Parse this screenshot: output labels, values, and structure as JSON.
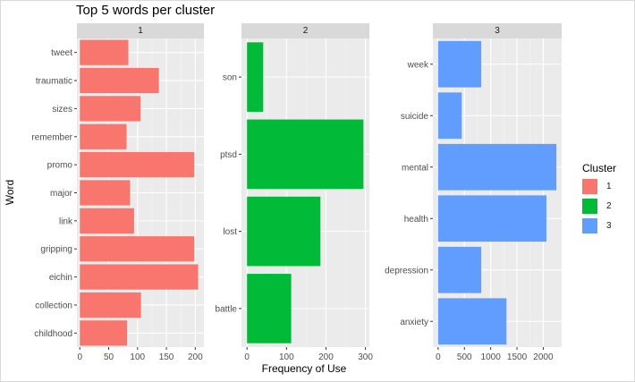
{
  "title": "Top 5 words per cluster",
  "xlabel": "Frequency of Use",
  "ylabel": "Word",
  "legend": {
    "title": "Cluster",
    "items": [
      {
        "label": "1",
        "color": "#F8766D"
      },
      {
        "label": "2",
        "color": "#00BA38"
      },
      {
        "label": "3",
        "color": "#619CFF"
      }
    ]
  },
  "chart_data": [
    {
      "type": "bar",
      "orientation": "horizontal",
      "panel": "1",
      "color": "#F8766D",
      "categories": [
        "childhood",
        "collection",
        "eichin",
        "gripping",
        "link",
        "major",
        "promo",
        "remember",
        "sizes",
        "traumatic",
        "tweet"
      ],
      "values": [
        82,
        106,
        205,
        198,
        94,
        87,
        198,
        81,
        105,
        137,
        84
      ],
      "xlim": [
        -5,
        215
      ],
      "xticks": [
        0,
        50,
        100,
        150,
        200
      ],
      "xticklabels": [
        "0",
        "50",
        "100",
        "150",
        "200"
      ]
    },
    {
      "type": "bar",
      "orientation": "horizontal",
      "panel": "2",
      "color": "#00BA38",
      "categories": [
        "battle",
        "lost",
        "ptsd",
        "son"
      ],
      "values": [
        112,
        186,
        295,
        41
      ],
      "xlim": [
        -14,
        310
      ],
      "xticks": [
        0,
        100,
        200,
        300
      ],
      "xticklabels": [
        "0",
        "100",
        "200",
        "300"
      ]
    },
    {
      "type": "bar",
      "orientation": "horizontal",
      "panel": "3",
      "color": "#619CFF",
      "categories": [
        "anxiety",
        "depression",
        "health",
        "mental",
        "suicide",
        "week"
      ],
      "values": [
        1300,
        820,
        2060,
        2250,
        450,
        820
      ],
      "xlim": [
        -100,
        2350
      ],
      "xticks": [
        0,
        500,
        1000,
        1500,
        2000
      ],
      "xticklabels": [
        "0",
        "500",
        "1000",
        "1500",
        "2000"
      ]
    }
  ]
}
